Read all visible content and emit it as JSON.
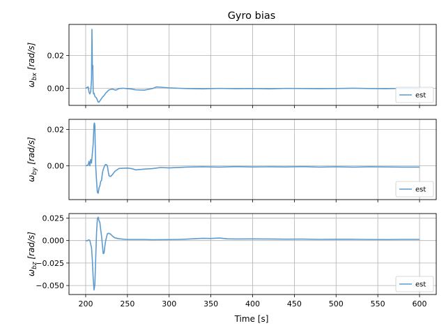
{
  "chart_data": {
    "type": "line",
    "title": "Gyro bias",
    "xlabel": "Time [s]",
    "xlim": [
      180,
      620
    ],
    "xticks": [
      200,
      250,
      300,
      350,
      400,
      450,
      500,
      550,
      600
    ],
    "grid": true,
    "legend_position": "lower-right",
    "line_color": "#5b9bd0",
    "panels": [
      {
        "ylabel_main": "ω",
        "ylabel_sub": "bx",
        "ylabel_unit": "[rad/s]",
        "ylim": [
          -0.0105,
          0.039
        ],
        "yticks": [
          0.0,
          0.02
        ],
        "ytick_labels": [
          "0.00",
          "0.02"
        ],
        "legend": "est",
        "series": [
          {
            "x": [
              200,
              203,
              204,
              205,
              206,
              207,
              207.5,
              208,
              208.5,
              209,
              209.5,
              210,
              211,
              213,
              215,
              216,
              218,
              220,
              222,
              224,
              226,
              228,
              232,
              236,
              240,
              245,
              250,
              255,
              260,
              270,
              280,
              285,
              290,
              300,
              320,
              340,
              360,
              380,
              400,
              420,
              440,
              460,
              480,
              500,
              520,
              540,
              560,
              580,
              600
            ],
            "y": [
              0,
              0.0008,
              -0.0025,
              -0.0035,
              -0.002,
              0.005,
              0.036,
              0.012,
              0.014,
              -0.002,
              -0.0035,
              -0.003,
              -0.005,
              -0.006,
              -0.0085,
              -0.0085,
              -0.007,
              -0.0055,
              -0.0045,
              -0.003,
              -0.002,
              -0.001,
              -0.0005,
              -0.0012,
              -0.0002,
              0.0,
              -0.0003,
              -0.0005,
              -0.001,
              -0.0012,
              -0.0002,
              0.0008,
              0.0006,
              0.0002,
              -0.0002,
              -0.0004,
              -0.0001,
              -0.0003,
              -0.0002,
              -0.0004,
              -0.0001,
              -0.0002,
              -0.0003,
              -0.0002,
              0.0,
              -0.0002,
              -0.0003,
              -0.0001,
              -0.0002
            ]
          }
        ]
      },
      {
        "ylabel_main": "ω",
        "ylabel_sub": "by",
        "ylabel_unit": "[rad/s]",
        "ylim": [
          -0.0185,
          0.0255
        ],
        "yticks": [
          0.0,
          0.02
        ],
        "ytick_labels": [
          "0.00",
          "0.02"
        ],
        "legend": "est",
        "series": [
          {
            "x": [
              200,
              203,
              204,
              205,
              206,
              207,
              208,
              209,
              210,
              210.5,
              211,
              211.5,
              212,
              213,
              214,
              215,
              216,
              217,
              218,
              219,
              220,
              221,
              222,
              223,
              224,
              225,
              226,
              227,
              228,
              230,
              232,
              235,
              240,
              245,
              250,
              255,
              260,
              270,
              280,
              290,
              300,
              320,
              340,
              360,
              380,
              400,
              420,
              440,
              460,
              480,
              500,
              520,
              540,
              560,
              580,
              600
            ],
            "y": [
              0,
              0.0005,
              0.0025,
              0.0,
              0.0035,
              0.0015,
              0.007,
              0.012,
              0.023,
              0.0235,
              0.022,
              0.01,
              0.0,
              -0.008,
              -0.0145,
              -0.015,
              -0.012,
              -0.011,
              -0.0085,
              -0.008,
              -0.004,
              -0.002,
              -0.0008,
              0.0003,
              0.0008,
              0.0006,
              0.0,
              -0.003,
              -0.0055,
              -0.0058,
              -0.0048,
              -0.003,
              -0.0014,
              -0.0013,
              -0.0012,
              -0.0015,
              -0.0022,
              -0.0018,
              -0.0015,
              -0.0009,
              -0.0011,
              -0.0007,
              -0.0005,
              -0.0007,
              -0.0004,
              -0.0006,
              -0.0005,
              -0.0006,
              -0.0004,
              -0.0007,
              -0.0005,
              -0.0007,
              -0.0005,
              -0.0006,
              -0.0007,
              -0.0007
            ]
          }
        ]
      },
      {
        "ylabel_main": "ω",
        "ylabel_sub": "bz",
        "ylabel_unit": "[rad/s]",
        "ylim": [
          -0.06,
          0.03
        ],
        "yticks": [
          0.025,
          0.0,
          -0.025,
          -0.05
        ],
        "ytick_labels": [
          "0.025",
          "0.000",
          "−0.025",
          "−0.050"
        ],
        "legend": "est",
        "series": [
          {
            "x": [
              200,
              202,
              203,
              204,
              205,
              206,
              207,
              208,
              209,
              210,
              211,
              212,
              213,
              214,
              215,
              216,
              217,
              218,
              219,
              220,
              221,
              222,
              223,
              224,
              225,
              226,
              227,
              228,
              230,
              232,
              235,
              240,
              245,
              250,
              260,
              270,
              280,
              290,
              300,
              310,
              320,
              330,
              340,
              350,
              360,
              370,
              380,
              400,
              420,
              440,
              460,
              480,
              500,
              520,
              540,
              560,
              580,
              600
            ],
            "y": [
              0,
              -0.0003,
              0.0005,
              0.0008,
              0.0,
              -0.004,
              -0.008,
              -0.022,
              -0.042,
              -0.055,
              -0.049,
              -0.02,
              0.008,
              0.024,
              0.026,
              0.022,
              0.02,
              0.012,
              0.005,
              -0.005,
              -0.0145,
              -0.014,
              -0.006,
              0.0,
              0.004,
              0.0075,
              0.008,
              0.008,
              0.007,
              0.005,
              0.003,
              0.002,
              0.0015,
              0.0012,
              0.0012,
              0.0012,
              0.0009,
              0.001,
              0.0011,
              0.0012,
              0.0015,
              0.002,
              0.0025,
              0.0023,
              0.0028,
              0.0019,
              0.0017,
              0.0018,
              0.0017,
              0.0015,
              0.0016,
              0.0013,
              0.0014,
              0.0014,
              0.0012,
              0.0011,
              0.0013,
              0.0013
            ]
          }
        ]
      }
    ]
  }
}
